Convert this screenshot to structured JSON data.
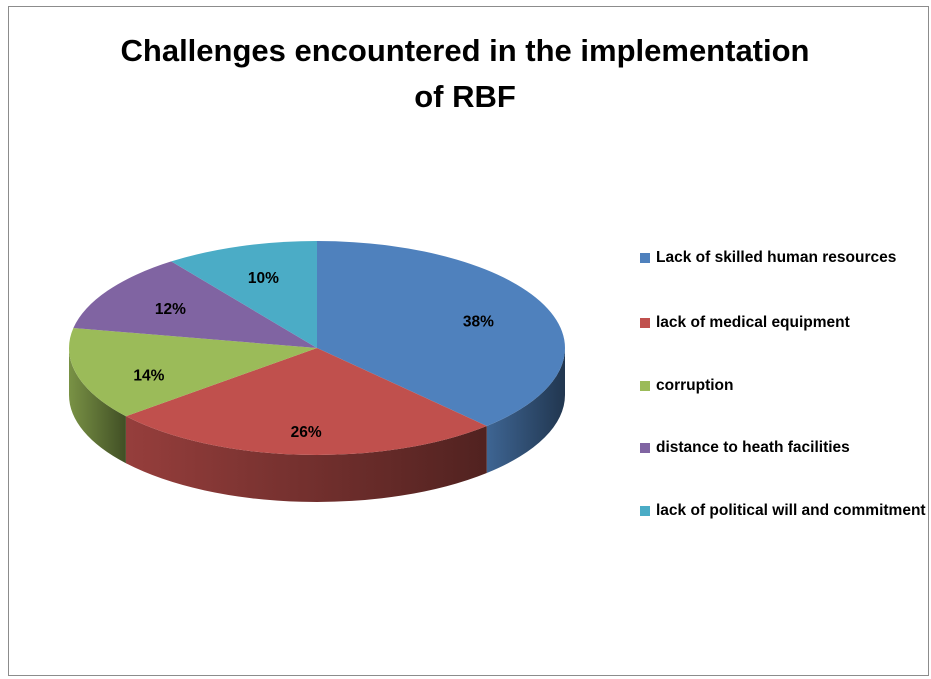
{
  "chart_data": {
    "type": "pie",
    "title_lines": [
      "Challenges encountered in the implementation",
      "of RBF"
    ],
    "slices": [
      {
        "label": "Lack of skilled human resources",
        "value": 38,
        "display": "38%",
        "color": "#4f81bd"
      },
      {
        "label": "lack of medical equipment",
        "value": 26,
        "display": "26%",
        "color": "#c0504d"
      },
      {
        "label": "corruption",
        "value": 14,
        "display": "14%",
        "color": "#9bbb59"
      },
      {
        "label": "distance to heath facilities",
        "value": 12,
        "display": "12%",
        "color": "#8064a2"
      },
      {
        "label": "lack of political will and commitment",
        "value": 10,
        "display": "10%",
        "color": "#4bacc6"
      }
    ],
    "legend_position": "right",
    "style": "3d"
  }
}
